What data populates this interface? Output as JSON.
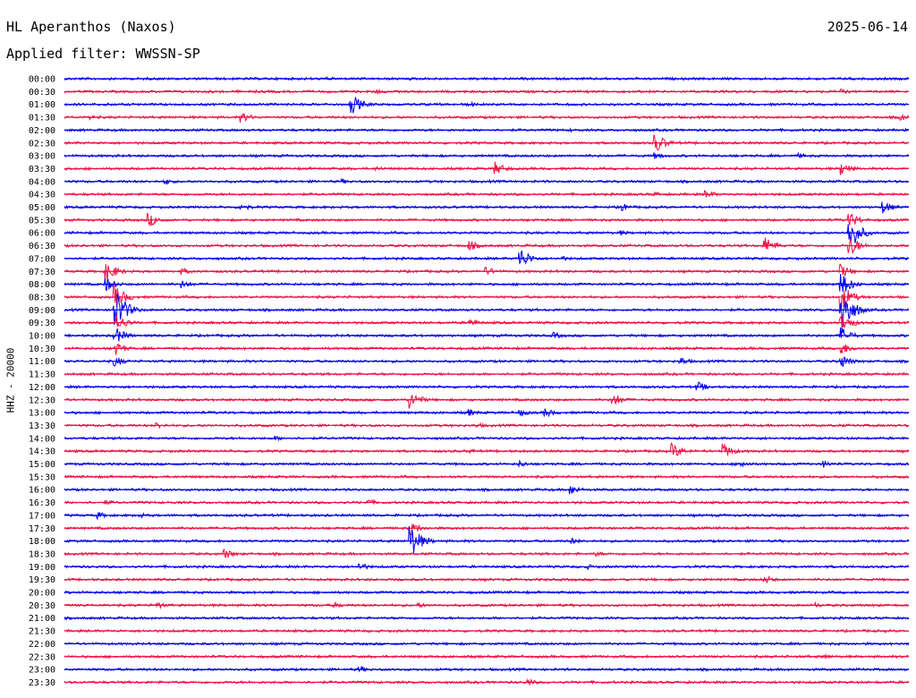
{
  "header": {
    "station": "HL Aperanthos (Naxos)",
    "date": "2025-06-14",
    "filter": "Applied filter: WWSSN-SP"
  },
  "chart_data": {
    "type": "line",
    "title": "HL Aperanthos (Naxos)",
    "subtitle": "Applied filter: WWSSN-SP",
    "ylabel": "HHZ - 20000",
    "xlabel": "",
    "grid": false,
    "colors": [
      "#0000ee",
      "#ee1144"
    ],
    "rows": [
      {
        "label": "00:00",
        "events": [
          {
            "x": 0.31,
            "amp": 2
          }
        ]
      },
      {
        "label": "00:30",
        "events": [
          {
            "x": 0.37,
            "amp": 3
          },
          {
            "x": 0.92,
            "amp": 3
          }
        ]
      },
      {
        "label": "01:00",
        "events": [
          {
            "x": 0.34,
            "amp": 12
          },
          {
            "x": 0.48,
            "amp": 3
          },
          {
            "x": 0.05,
            "amp": 2
          }
        ]
      },
      {
        "label": "01:30",
        "events": [
          {
            "x": 0.21,
            "amp": 6
          },
          {
            "x": 0.03,
            "amp": 3
          },
          {
            "x": 0.99,
            "amp": 4
          }
        ]
      },
      {
        "label": "02:00",
        "events": [
          {
            "x": 0.6,
            "amp": 2
          }
        ]
      },
      {
        "label": "02:30",
        "events": [
          {
            "x": 0.7,
            "amp": 12
          }
        ]
      },
      {
        "label": "03:00",
        "events": [
          {
            "x": 0.7,
            "amp": 4
          },
          {
            "x": 0.06,
            "amp": 2
          },
          {
            "x": 0.87,
            "amp": 3
          }
        ]
      },
      {
        "label": "03:30",
        "events": [
          {
            "x": 0.51,
            "amp": 8
          },
          {
            "x": 0.92,
            "amp": 8
          },
          {
            "x": 0.37,
            "amp": 3
          }
        ]
      },
      {
        "label": "04:00",
        "events": [
          {
            "x": 0.12,
            "amp": 4
          },
          {
            "x": 0.33,
            "amp": 3
          }
        ]
      },
      {
        "label": "04:30",
        "events": [
          {
            "x": 0.76,
            "amp": 5
          },
          {
            "x": 0.7,
            "amp": 3
          }
        ]
      },
      {
        "label": "05:00",
        "events": [
          {
            "x": 0.66,
            "amp": 5
          },
          {
            "x": 0.21,
            "amp": 5
          },
          {
            "x": 0.97,
            "amp": 7
          }
        ]
      },
      {
        "label": "05:30",
        "events": [
          {
            "x": 0.1,
            "amp": 8
          },
          {
            "x": 0.93,
            "amp": 9
          }
        ]
      },
      {
        "label": "06:00",
        "events": [
          {
            "x": 0.93,
            "amp": 20
          },
          {
            "x": 0.66,
            "amp": 3
          }
        ]
      },
      {
        "label": "06:30",
        "events": [
          {
            "x": 0.83,
            "amp": 10
          },
          {
            "x": 0.48,
            "amp": 6
          },
          {
            "x": 0.93,
            "amp": 12
          }
        ]
      },
      {
        "label": "07:00",
        "events": [
          {
            "x": 0.54,
            "amp": 12
          },
          {
            "x": 0.59,
            "amp": 3
          }
        ]
      },
      {
        "label": "07:30",
        "events": [
          {
            "x": 0.05,
            "amp": 12
          },
          {
            "x": 0.5,
            "amp": 5
          },
          {
            "x": 0.14,
            "amp": 4
          },
          {
            "x": 0.92,
            "amp": 8
          }
        ]
      },
      {
        "label": "08:00",
        "events": [
          {
            "x": 0.14,
            "amp": 5
          },
          {
            "x": 0.05,
            "amp": 8
          },
          {
            "x": 0.92,
            "amp": 14
          }
        ]
      },
      {
        "label": "08:30",
        "events": [
          {
            "x": 0.06,
            "amp": 14
          },
          {
            "x": 0.92,
            "amp": 16
          }
        ]
      },
      {
        "label": "09:00",
        "events": [
          {
            "x": 0.06,
            "amp": 26
          },
          {
            "x": 0.92,
            "amp": 30
          }
        ]
      },
      {
        "label": "09:30",
        "events": [
          {
            "x": 0.06,
            "amp": 12
          },
          {
            "x": 0.48,
            "amp": 5
          },
          {
            "x": 0.92,
            "amp": 12
          }
        ]
      },
      {
        "label": "10:00",
        "events": [
          {
            "x": 0.06,
            "amp": 10
          },
          {
            "x": 0.58,
            "amp": 4
          },
          {
            "x": 0.92,
            "amp": 10
          }
        ]
      },
      {
        "label": "10:30",
        "events": [
          {
            "x": 0.06,
            "amp": 8
          },
          {
            "x": 0.92,
            "amp": 8
          }
        ]
      },
      {
        "label": "11:00",
        "events": [
          {
            "x": 0.06,
            "amp": 6
          },
          {
            "x": 0.73,
            "amp": 5
          },
          {
            "x": 0.92,
            "amp": 8
          }
        ]
      },
      {
        "label": "11:30",
        "events": []
      },
      {
        "label": "12:00",
        "events": [
          {
            "x": 0.75,
            "amp": 6
          }
        ]
      },
      {
        "label": "12:30",
        "events": [
          {
            "x": 0.41,
            "amp": 10
          },
          {
            "x": 0.65,
            "amp": 8
          }
        ]
      },
      {
        "label": "13:00",
        "events": [
          {
            "x": 0.48,
            "amp": 4
          },
          {
            "x": 0.57,
            "amp": 5
          },
          {
            "x": 0.54,
            "amp": 4
          }
        ]
      },
      {
        "label": "13:30",
        "events": [
          {
            "x": 0.11,
            "amp": 4
          },
          {
            "x": 0.49,
            "amp": 3
          }
        ]
      },
      {
        "label": "14:00",
        "events": [
          {
            "x": 0.25,
            "amp": 3
          }
        ]
      },
      {
        "label": "14:30",
        "events": [
          {
            "x": 0.72,
            "amp": 9
          },
          {
            "x": 0.78,
            "amp": 9
          },
          {
            "x": 0.48,
            "amp": 3
          }
        ]
      },
      {
        "label": "15:00",
        "events": [
          {
            "x": 0.54,
            "amp": 4
          },
          {
            "x": 0.8,
            "amp": 5
          },
          {
            "x": 0.9,
            "amp": 4
          }
        ]
      },
      {
        "label": "15:30",
        "events": []
      },
      {
        "label": "16:00",
        "events": [
          {
            "x": 0.6,
            "amp": 6
          }
        ]
      },
      {
        "label": "16:30",
        "events": [
          {
            "x": 0.36,
            "amp": 4
          },
          {
            "x": 0.05,
            "amp": 3
          }
        ]
      },
      {
        "label": "17:00",
        "events": [
          {
            "x": 0.04,
            "amp": 4
          },
          {
            "x": 0.09,
            "amp": 3
          }
        ]
      },
      {
        "label": "17:30",
        "events": [
          {
            "x": 0.41,
            "amp": 8
          }
        ]
      },
      {
        "label": "18:00",
        "events": [
          {
            "x": 0.41,
            "amp": 20
          },
          {
            "x": 0.6,
            "amp": 4
          }
        ]
      },
      {
        "label": "18:30",
        "events": [
          {
            "x": 0.19,
            "amp": 6
          },
          {
            "x": 0.63,
            "amp": 3
          }
        ]
      },
      {
        "label": "19:00",
        "events": [
          {
            "x": 0.35,
            "amp": 5
          },
          {
            "x": 0.62,
            "amp": 3
          }
        ]
      },
      {
        "label": "19:30",
        "events": [
          {
            "x": 0.83,
            "amp": 5
          }
        ]
      },
      {
        "label": "20:00",
        "events": []
      },
      {
        "label": "20:30",
        "events": [
          {
            "x": 0.32,
            "amp": 4
          },
          {
            "x": 0.11,
            "amp": 4
          },
          {
            "x": 0.42,
            "amp": 3
          },
          {
            "x": 0.89,
            "amp": 3
          }
        ]
      },
      {
        "label": "21:00",
        "events": []
      },
      {
        "label": "21:30",
        "events": []
      },
      {
        "label": "22:00",
        "events": []
      },
      {
        "label": "22:30",
        "events": [
          {
            "x": 0.9,
            "amp": 3
          }
        ]
      },
      {
        "label": "23:00",
        "events": [
          {
            "x": 0.35,
            "amp": 4
          }
        ]
      },
      {
        "label": "23:30",
        "events": [
          {
            "x": 0.55,
            "amp": 4
          }
        ]
      }
    ]
  }
}
